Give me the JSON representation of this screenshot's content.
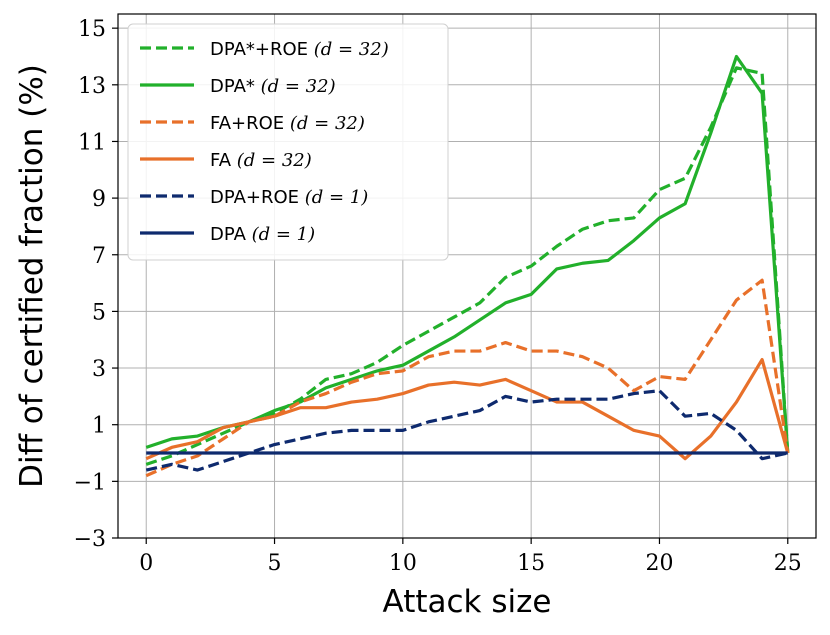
{
  "chart_data": {
    "type": "line",
    "title": "",
    "xlabel": "Attack size",
    "ylabel": "Diff of certified fraction (%)",
    "xlim": [
      -1.1,
      26.1
    ],
    "ylim": [
      -3,
      15.5
    ],
    "xticks": [
      0,
      5,
      10,
      15,
      20,
      25
    ],
    "yticks": [
      -3,
      -1,
      1,
      3,
      5,
      7,
      9,
      11,
      13,
      15
    ],
    "xtick_labels": [
      "0",
      "5",
      "10",
      "15",
      "20",
      "25"
    ],
    "ytick_labels": [
      "−3",
      "−1",
      "1",
      "3",
      "5",
      "7",
      "9",
      "11",
      "13",
      "15"
    ],
    "grid": true,
    "legend_position": "top-left",
    "x": [
      0,
      1,
      2,
      3,
      4,
      5,
      6,
      7,
      8,
      9,
      10,
      11,
      12,
      13,
      14,
      15,
      16,
      17,
      18,
      19,
      20,
      21,
      22,
      23,
      24,
      25
    ],
    "series": [
      {
        "name": "DPA*+ROE",
        "legend_math": "(d = 32)",
        "color": "#22b02b",
        "dash": "dashed",
        "values": [
          -0.4,
          -0.1,
          0.3,
          0.7,
          1.1,
          1.4,
          1.9,
          2.6,
          2.8,
          3.2,
          3.8,
          4.3,
          4.8,
          5.3,
          6.2,
          6.6,
          7.3,
          7.9,
          8.2,
          8.3,
          9.3,
          9.7,
          11.5,
          13.6,
          13.4,
          0.0
        ]
      },
      {
        "name": "DPA*",
        "legend_math": "(d = 32)",
        "color": "#22b02b",
        "dash": "solid",
        "values": [
          0.2,
          0.5,
          0.6,
          0.9,
          1.1,
          1.5,
          1.8,
          2.3,
          2.6,
          2.9,
          3.1,
          3.6,
          4.1,
          4.7,
          5.3,
          5.6,
          6.5,
          6.7,
          6.8,
          7.5,
          8.3,
          8.8,
          11.3,
          14.0,
          12.7,
          0.0
        ]
      },
      {
        "name": "FA+ROE",
        "legend_math": "(d = 32)",
        "color": "#e8702a",
        "dash": "dashed",
        "values": [
          -0.8,
          -0.4,
          -0.1,
          0.5,
          1.1,
          1.3,
          1.8,
          2.1,
          2.5,
          2.8,
          2.9,
          3.4,
          3.6,
          3.6,
          3.9,
          3.6,
          3.6,
          3.4,
          3.0,
          2.2,
          2.7,
          2.6,
          4.0,
          5.4,
          6.1,
          0.0
        ]
      },
      {
        "name": "FA",
        "legend_math": "(d = 32)",
        "color": "#e8702a",
        "dash": "solid",
        "values": [
          -0.2,
          0.2,
          0.4,
          0.9,
          1.1,
          1.3,
          1.6,
          1.6,
          1.8,
          1.9,
          2.1,
          2.4,
          2.5,
          2.4,
          2.6,
          2.2,
          1.8,
          1.8,
          1.3,
          0.8,
          0.6,
          -0.2,
          0.6,
          1.8,
          3.3,
          0.0
        ]
      },
      {
        "name": "DPA+ROE",
        "legend_math": "(d = 1)",
        "color": "#0e2a6e",
        "dash": "dashed",
        "values": [
          -0.6,
          -0.4,
          -0.6,
          -0.3,
          0.0,
          0.3,
          0.5,
          0.7,
          0.8,
          0.8,
          0.8,
          1.1,
          1.3,
          1.5,
          2.0,
          1.8,
          1.9,
          1.9,
          1.9,
          2.1,
          2.2,
          1.3,
          1.4,
          0.8,
          -0.2,
          0.0
        ]
      },
      {
        "name": "DPA",
        "legend_math": "(d = 1)",
        "color": "#0e2a6e",
        "dash": "solid",
        "values": [
          0,
          0,
          0,
          0,
          0,
          0,
          0,
          0,
          0,
          0,
          0,
          0,
          0,
          0,
          0,
          0,
          0,
          0,
          0,
          0,
          0,
          0,
          0,
          0,
          0,
          0
        ]
      }
    ]
  }
}
